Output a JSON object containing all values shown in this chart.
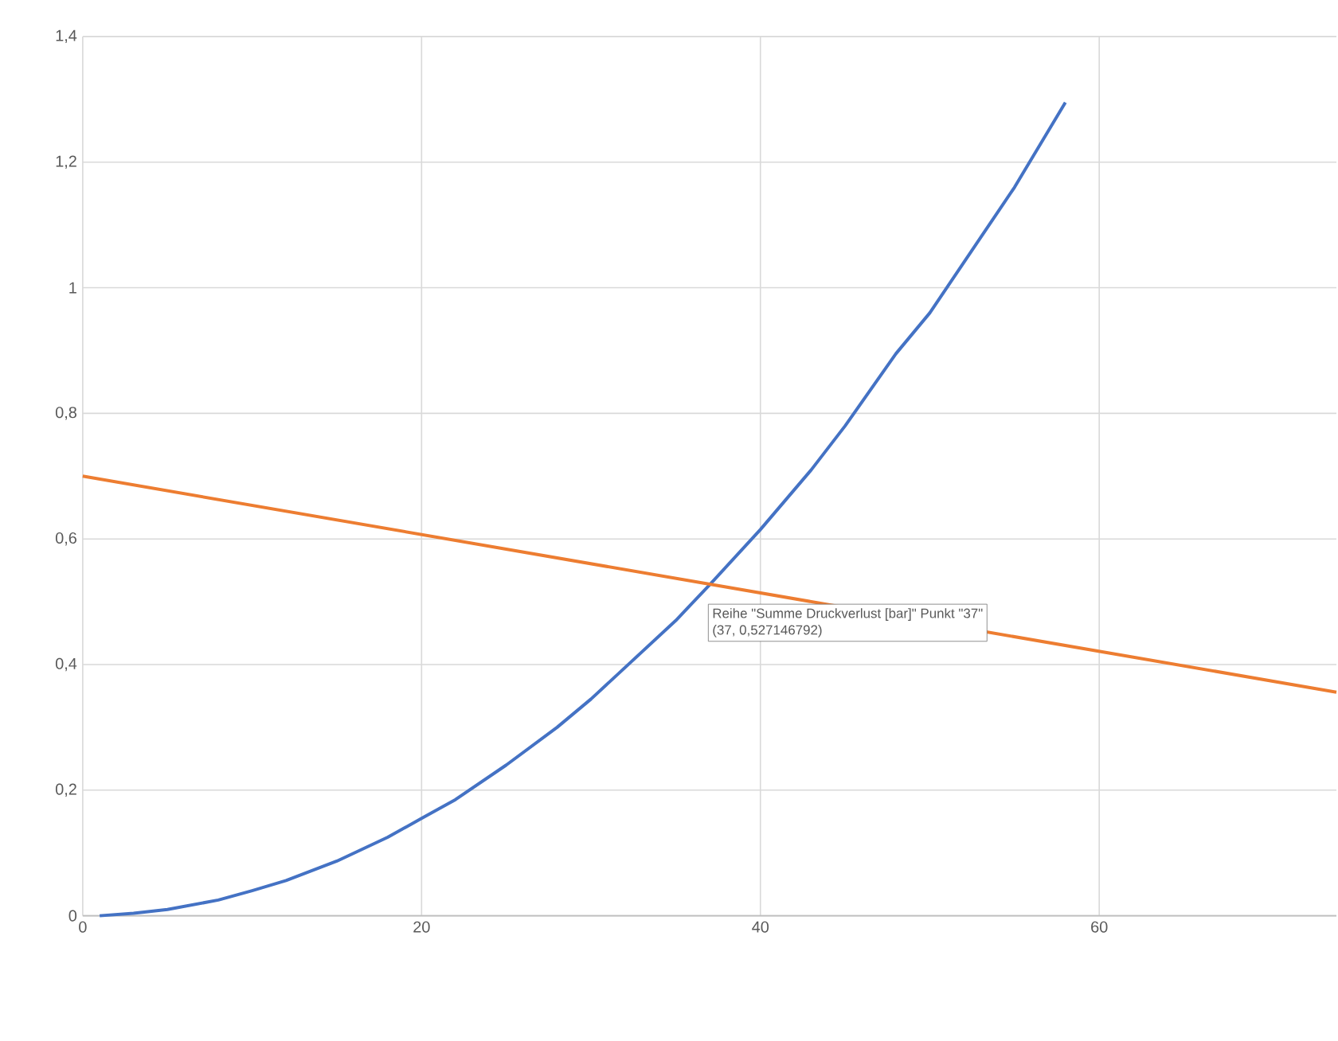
{
  "chart_data": {
    "type": "line",
    "x": [
      1,
      3,
      5,
      8,
      10,
      12,
      15,
      18,
      20,
      22,
      25,
      28,
      30,
      33,
      35,
      37,
      40,
      43,
      45,
      48,
      50,
      53,
      55,
      58
    ],
    "series": [
      {
        "color": "#4472c4",
        "values": [
          0.0,
          0.004,
          0.01,
          0.025,
          0.04,
          0.056,
          0.087,
          0.125,
          0.155,
          0.185,
          0.24,
          0.3,
          0.345,
          0.42,
          0.47,
          0.527,
          0.615,
          0.71,
          0.78,
          0.895,
          0.96,
          1.08,
          1.16,
          1.295
        ]
      },
      {
        "color": "#ed7d31",
        "x": [
          0,
          74
        ],
        "values": [
          0.7,
          0.356
        ]
      }
    ],
    "xlim": [
      0,
      74
    ],
    "xticks": [
      0,
      20,
      40,
      60
    ],
    "ylim": [
      0,
      1.4
    ],
    "yticks": [
      0,
      {
        "value": 0.2,
        "label": "0,2"
      },
      {
        "value": 0.4,
        "label": "0,4"
      },
      {
        "value": 0.6,
        "label": "0,6"
      },
      {
        "value": 0.8,
        "label": "0,8"
      },
      1,
      {
        "value": 1.2,
        "label": "1,2"
      },
      {
        "value": 1.4,
        "label": "1,4"
      }
    ],
    "grid": true,
    "marker": "none",
    "line_style": "solid",
    "annotations": [
      {
        "text": "Reihe \"Summe Druckverlust  [bar]\" Punkt \"37\"",
        "x": 37,
        "y": 0.527
      },
      "(37, 0,527146792)"
    ]
  }
}
